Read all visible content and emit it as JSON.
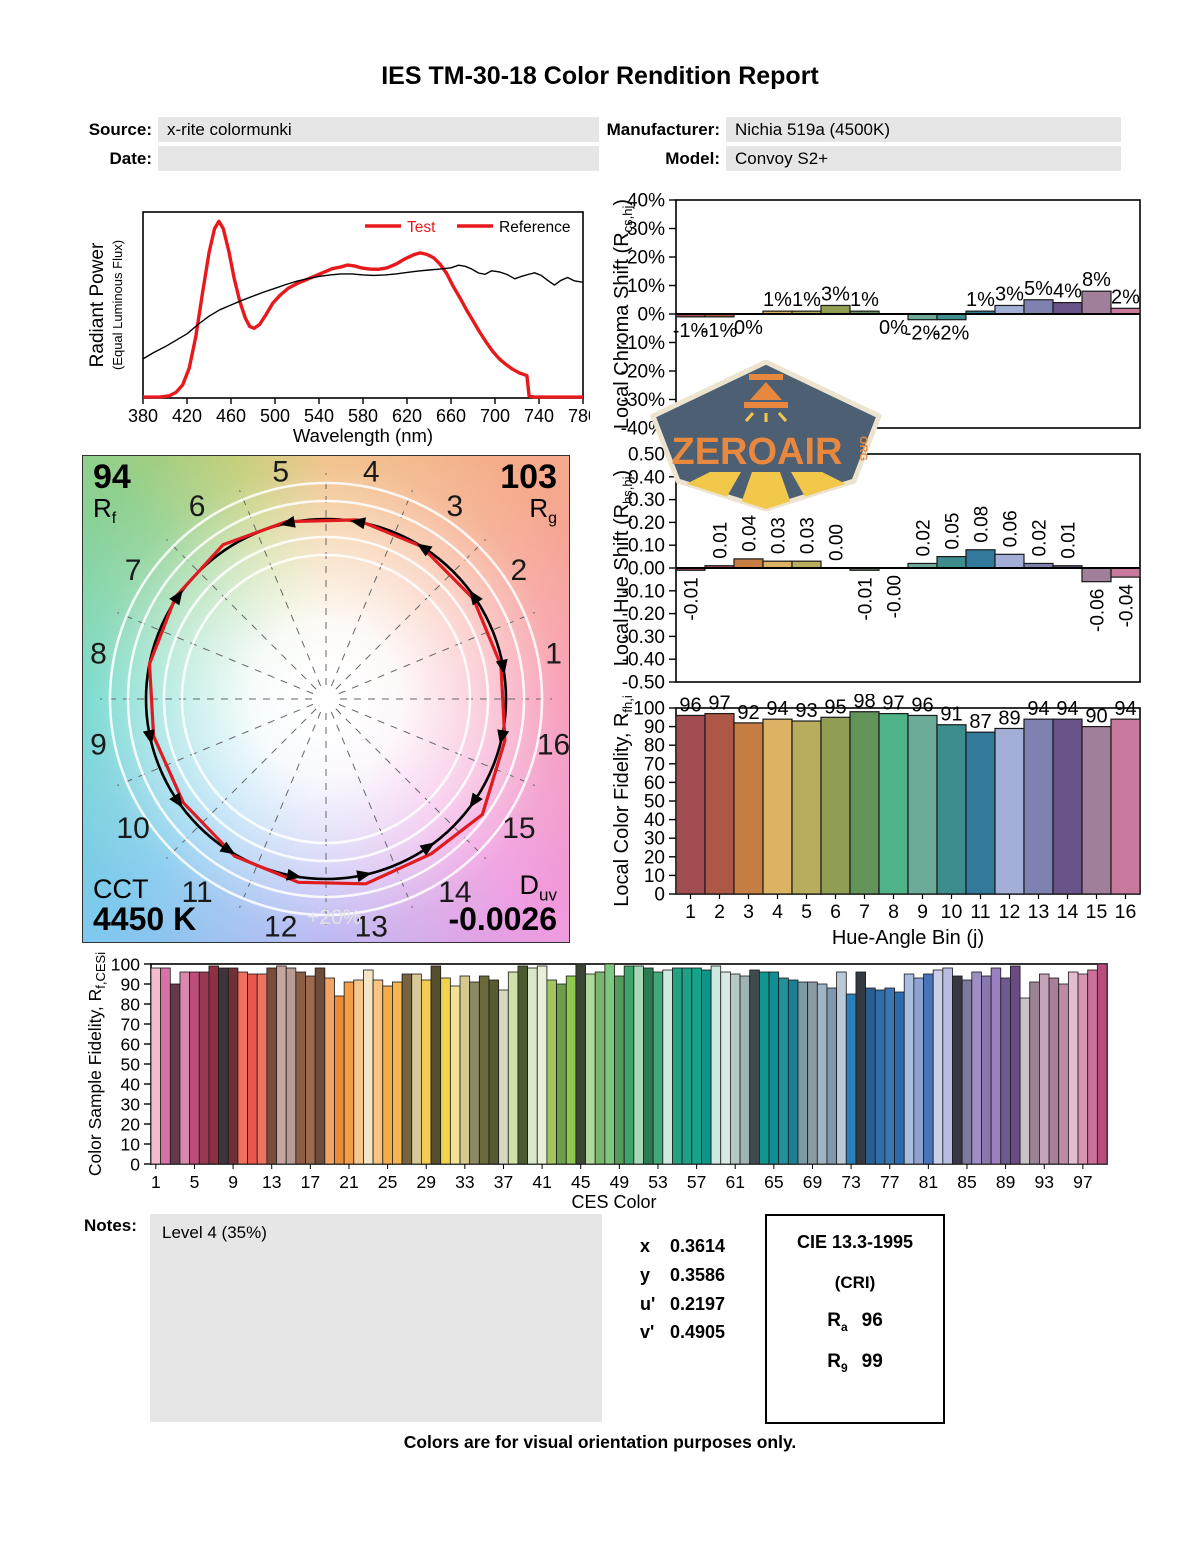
{
  "title": "IES TM-30-18 Color Rendition Report",
  "meta": {
    "source_label": "Source:",
    "source_value": "x-rite colormunki",
    "date_label": "Date:",
    "date_value": "",
    "manufacturer_label": "Manufacturer:",
    "manufacturer_value": "Nichia 519a (4500K)",
    "model_label": "Model:",
    "model_value": "Convoy S2+"
  },
  "logo": {
    "brand": "ZEROAIR",
    "tld": "ORG"
  },
  "cvg": {
    "rf_value": "94",
    "rf_label_main": "R",
    "rf_label_sub": "f",
    "rg_value": "103",
    "rg_label_main": "R",
    "rg_label_sub": "g",
    "cct_label": "CCT",
    "cct_value": "4450 K",
    "duv_label_main": "D",
    "duv_label_sub": "uv",
    "duv_value": "-0.0026",
    "ring_label": "+20%",
    "bin_labels": [
      "1",
      "2",
      "3",
      "4",
      "5",
      "6",
      "7",
      "8",
      "9",
      "10",
      "11",
      "12",
      "13",
      "14",
      "15",
      "16"
    ],
    "test_radius_factor": [
      0.99,
      0.99,
      1.0,
      1.01,
      1.01,
      1.03,
      1.01,
      1.0,
      0.98,
      0.98,
      1.01,
      1.03,
      1.05,
      1.04,
      1.08,
      1.02
    ],
    "hue_shift": [
      -0.01,
      0.01,
      0.04,
      0.03,
      0.03,
      0.0,
      -0.01,
      0.0,
      0.02,
      0.05,
      0.08,
      0.06,
      0.02,
      0.01,
      -0.06,
      -0.04
    ]
  },
  "bin_colors": [
    "#a14d52",
    "#ad5746",
    "#c67e42",
    "#dcb264",
    "#b7ad5c",
    "#8f9e52",
    "#62945a",
    "#4fb389",
    "#6cab99",
    "#3e8d8d",
    "#33799b",
    "#a3afd7",
    "#7f82b0",
    "#6a5388",
    "#a07f9a",
    "#c8799c"
  ],
  "notes": {
    "label": "Notes:",
    "value": "Level 4 (35%)"
  },
  "chromaticity": {
    "rows": [
      {
        "label": "x",
        "value": "0.3614"
      },
      {
        "label": "y",
        "value": "0.3586"
      },
      {
        "label": "u'",
        "value": "0.2197"
      },
      {
        "label": "v'",
        "value": "0.4905"
      }
    ]
  },
  "cri_box": {
    "title": "CIE 13.3-1995",
    "subtitle": "(CRI)",
    "rows": [
      {
        "label_main": "R",
        "label_sub": "a",
        "value": "96"
      },
      {
        "label_main": "R",
        "label_sub": "9",
        "value": "99"
      }
    ]
  },
  "footer": "Colors are for visual orientation purposes only.",
  "chart_data": [
    {
      "id": "spd",
      "type": "line",
      "xlabel": "Wavelength (nm)",
      "ylabel_line1": "Radiant Power",
      "ylabel_line2": "(Equal Luminous Flux)",
      "xlim": [
        380,
        780
      ],
      "ylim": [
        0,
        1
      ],
      "grid": false,
      "xticks": [
        380,
        420,
        460,
        500,
        540,
        580,
        620,
        660,
        700,
        740,
        780
      ],
      "legend": [
        {
          "label": "Test",
          "line_color": "#e8191c",
          "text_color": "#e8191c"
        },
        {
          "label": "Reference",
          "line_color": "#e8191c",
          "text_color": "#000000"
        }
      ],
      "series": [
        {
          "name": "Test",
          "color": "#e8191c",
          "width": 3.4,
          "points": [
            [
              380,
              0.005
            ],
            [
              396,
              0.006
            ],
            [
              404,
              0.012
            ],
            [
              410,
              0.03
            ],
            [
              416,
              0.07
            ],
            [
              422,
              0.16
            ],
            [
              428,
              0.33
            ],
            [
              434,
              0.56
            ],
            [
              440,
              0.78
            ],
            [
              445,
              0.91
            ],
            [
              449,
              0.95
            ],
            [
              453,
              0.91
            ],
            [
              458,
              0.79
            ],
            [
              463,
              0.64
            ],
            [
              468,
              0.52
            ],
            [
              473,
              0.43
            ],
            [
              477,
              0.385
            ],
            [
              481,
              0.375
            ],
            [
              486,
              0.395
            ],
            [
              492,
              0.45
            ],
            [
              498,
              0.51
            ],
            [
              505,
              0.555
            ],
            [
              512,
              0.59
            ],
            [
              520,
              0.615
            ],
            [
              528,
              0.635
            ],
            [
              536,
              0.655
            ],
            [
              544,
              0.675
            ],
            [
              552,
              0.695
            ],
            [
              560,
              0.705
            ],
            [
              566,
              0.715
            ],
            [
              572,
              0.71
            ],
            [
              578,
              0.7
            ],
            [
              586,
              0.693
            ],
            [
              594,
              0.692
            ],
            [
              602,
              0.7
            ],
            [
              610,
              0.72
            ],
            [
              618,
              0.748
            ],
            [
              626,
              0.77
            ],
            [
              632,
              0.78
            ],
            [
              638,
              0.772
            ],
            [
              644,
              0.755
            ],
            [
              650,
              0.72
            ],
            [
              656,
              0.67
            ],
            [
              662,
              0.6
            ],
            [
              668,
              0.54
            ],
            [
              674,
              0.475
            ],
            [
              680,
              0.415
            ],
            [
              686,
              0.355
            ],
            [
              692,
              0.3
            ],
            [
              698,
              0.25
            ],
            [
              704,
              0.21
            ],
            [
              710,
              0.18
            ],
            [
              716,
              0.155
            ],
            [
              722,
              0.135
            ],
            [
              727,
              0.125
            ],
            [
              729,
              0.12
            ],
            [
              731,
              0.01
            ],
            [
              736,
              0.005
            ],
            [
              780,
              0.005
            ]
          ]
        },
        {
          "name": "Reference",
          "color": "#000000",
          "width": 1.4,
          "points": [
            [
              380,
              0.21
            ],
            [
              390,
              0.245
            ],
            [
              400,
              0.275
            ],
            [
              410,
              0.31
            ],
            [
              420,
              0.345
            ],
            [
              430,
              0.395
            ],
            [
              440,
              0.44
            ],
            [
              450,
              0.475
            ],
            [
              460,
              0.5
            ],
            [
              470,
              0.525
            ],
            [
              480,
              0.548
            ],
            [
              490,
              0.57
            ],
            [
              500,
              0.59
            ],
            [
              510,
              0.61
            ],
            [
              520,
              0.628
            ],
            [
              530,
              0.642
            ],
            [
              540,
              0.654
            ],
            [
              550,
              0.662
            ],
            [
              560,
              0.667
            ],
            [
              570,
              0.667
            ],
            [
              580,
              0.662
            ],
            [
              590,
              0.659
            ],
            [
              600,
              0.662
            ],
            [
              610,
              0.667
            ],
            [
              620,
              0.675
            ],
            [
              630,
              0.682
            ],
            [
              640,
              0.688
            ],
            [
              650,
              0.693
            ],
            [
              660,
              0.7
            ],
            [
              667,
              0.714
            ],
            [
              673,
              0.708
            ],
            [
              679,
              0.693
            ],
            [
              685,
              0.672
            ],
            [
              691,
              0.665
            ],
            [
              697,
              0.684
            ],
            [
              704,
              0.678
            ],
            [
              711,
              0.664
            ],
            [
              718,
              0.641
            ],
            [
              724,
              0.654
            ],
            [
              730,
              0.664
            ],
            [
              736,
              0.673
            ],
            [
              742,
              0.659
            ],
            [
              748,
              0.632
            ],
            [
              754,
              0.607
            ],
            [
              760,
              0.633
            ],
            [
              766,
              0.648
            ],
            [
              772,
              0.63
            ],
            [
              778,
              0.624
            ],
            [
              780,
              0.623
            ]
          ]
        }
      ]
    },
    {
      "id": "chroma",
      "type": "bar",
      "ylabel_main": "Local Chroma Shift (R",
      "ylabel_sub": "cs,hj",
      "ylabel_close": ")",
      "ylim": [
        -40,
        40
      ],
      "ytick_vals": [
        40,
        30,
        20,
        10,
        0,
        -10,
        -20,
        -30,
        -40
      ],
      "ytick_labels": [
        "40%",
        "30%",
        "20%",
        "10%",
        "0%",
        "-10%",
        "-20%",
        "-30%",
        "-40%"
      ],
      "categories": [
        1,
        2,
        3,
        4,
        5,
        6,
        7,
        8,
        9,
        10,
        11,
        12,
        13,
        14,
        15,
        16
      ],
      "values": [
        -1,
        -1,
        0,
        1,
        1,
        3,
        1,
        0,
        -2,
        -2,
        1,
        3,
        5,
        4,
        8,
        2
      ],
      "labels": [
        "-1%",
        "-1%",
        "0%",
        "1%",
        "1%",
        "3%",
        "1%",
        "0%",
        "-2%",
        "-2%",
        "1%",
        "3%",
        "5%",
        "4%",
        "8%",
        "2%"
      ],
      "label_sides": [
        "b",
        "b",
        "b",
        "a",
        "a",
        "a",
        "a",
        "b",
        "b",
        "b",
        "a",
        "a",
        "a",
        "a",
        "a",
        "a"
      ]
    },
    {
      "id": "hue",
      "type": "bar",
      "ylabel_main": "Local Hue Shift (R",
      "ylabel_sub": "hs,hj",
      "ylabel_close": ")",
      "ylim": [
        -0.5,
        0.5
      ],
      "ytick_vals": [
        0.5,
        0.4,
        0.3,
        0.2,
        0.1,
        0,
        -0.1,
        -0.2,
        -0.3,
        -0.4,
        -0.5
      ],
      "ytick_labels": [
        "0.50",
        "0.40",
        "0.30",
        "0.20",
        "0.10",
        "0.00",
        "-0.10",
        "-0.20",
        "-0.30",
        "-0.40",
        "-0.50"
      ],
      "categories": [
        1,
        2,
        3,
        4,
        5,
        6,
        7,
        8,
        9,
        10,
        11,
        12,
        13,
        14,
        15,
        16
      ],
      "values": [
        -0.01,
        0.01,
        0.04,
        0.03,
        0.03,
        0,
        -0.01,
        0,
        0.02,
        0.05,
        0.08,
        0.06,
        0.02,
        0.01,
        -0.06,
        -0.04
      ],
      "labels": [
        "-0.01",
        "0.01",
        "0.04",
        "0.03",
        "0.03",
        "0.00",
        "-0.01",
        "-0.00",
        "0.02",
        "0.05",
        "0.08",
        "0.06",
        "0.02",
        "0.01",
        "-0.06",
        "-0.04"
      ],
      "label_sides": [
        "b",
        "a",
        "a",
        "a",
        "a",
        "a",
        "b",
        "b",
        "a",
        "a",
        "a",
        "a",
        "a",
        "a",
        "b",
        "b"
      ]
    },
    {
      "id": "fidelity",
      "type": "bar",
      "ylabel_main": "Local Color Fidelity, R",
      "ylabel_sub": "fh,i",
      "ylabel_close": "",
      "xlabel": "Hue-Angle Bin (j)",
      "ylim": [
        0,
        100
      ],
      "ytick_vals": [
        100,
        90,
        80,
        70,
        60,
        50,
        40,
        30,
        20,
        10,
        0
      ],
      "ytick_labels": [
        "100",
        "90",
        "80",
        "70",
        "60",
        "50",
        "40",
        "30",
        "20",
        "10",
        "0"
      ],
      "categories": [
        "1",
        "2",
        "3",
        "4",
        "5",
        "6",
        "7",
        "8",
        "9",
        "10",
        "11",
        "12",
        "13",
        "14",
        "15",
        "16"
      ],
      "values": [
        96,
        97,
        92,
        94,
        93,
        95,
        98,
        97,
        96,
        91,
        87,
        89,
        94,
        94,
        90,
        94
      ],
      "labels": [
        "96",
        "97",
        "92",
        "94",
        "93",
        "95",
        "98",
        "97",
        "96",
        "91",
        "87",
        "89",
        "94",
        "94",
        "90",
        "94"
      ]
    },
    {
      "id": "ces",
      "type": "bar",
      "ylabel_main": "Color Sample Fidelity, R",
      "ylabel_sub": "f,CESi",
      "ylabel_close": "",
      "xlabel": "CES Color",
      "ylim": [
        0,
        100
      ],
      "ytick_vals": [
        100,
        90,
        80,
        70,
        60,
        50,
        40,
        30,
        20,
        10,
        0
      ],
      "ytick_labels": [
        "100",
        "90",
        "80",
        "70",
        "60",
        "50",
        "40",
        "30",
        "20",
        "10",
        "0"
      ],
      "xtick_labels": [
        "1",
        "5",
        "9",
        "13",
        "17",
        "21",
        "25",
        "29",
        "33",
        "37",
        "41",
        "45",
        "49",
        "53",
        "57",
        "61",
        "65",
        "69",
        "73",
        "77",
        "81",
        "85",
        "89",
        "93",
        "97"
      ],
      "values": [
        98,
        98,
        90,
        96,
        96,
        96,
        99,
        98,
        98,
        96,
        95,
        95,
        98,
        99,
        98,
        96,
        94,
        98,
        93,
        84,
        91,
        92,
        97,
        92,
        89,
        91,
        95,
        95,
        92,
        99,
        93,
        89,
        94,
        91,
        94,
        92,
        87,
        96,
        99,
        98,
        99,
        92,
        90,
        94,
        100,
        95,
        96,
        100,
        94,
        99,
        99,
        98,
        96,
        97,
        98,
        98,
        98,
        97,
        99,
        96,
        95,
        94,
        97,
        96,
        96,
        93,
        92,
        91,
        91,
        90,
        88,
        96,
        85,
        96,
        88,
        87,
        88,
        86,
        95,
        93,
        95,
        97,
        98,
        94,
        92,
        96,
        94,
        98,
        93,
        99,
        83,
        91,
        95,
        93,
        90,
        96,
        95,
        97,
        100
      ],
      "colors": [
        "#f4bcd1",
        "#d874a5",
        "#64394a",
        "#d987ab",
        "#bb4d79",
        "#973952",
        "#8e2f44",
        "#3d343c",
        "#6f3038",
        "#ef6f60",
        "#e9564c",
        "#f07261",
        "#7d4b3a",
        "#c6a49f",
        "#b89b94",
        "#8d5c45",
        "#9b6a4f",
        "#6d4c39",
        "#f2a366",
        "#ea8c38",
        "#f29d47",
        "#f7c68d",
        "#f3e5c5",
        "#f8c480",
        "#f5ab49",
        "#f5b551",
        "#776341",
        "#d8c897",
        "#f4cc55",
        "#564f2d",
        "#f0d24f",
        "#f3e294",
        "#d5c98f",
        "#8d8a63",
        "#6c6a3b",
        "#585a31",
        "#d6d8c2",
        "#cfe0a8",
        "#4c5c31",
        "#d8e8c9",
        "#e7efd8",
        "#a4c45f",
        "#6e9e4c",
        "#8fc84e",
        "#3c4435",
        "#b0d89a",
        "#79b56b",
        "#7dc87e",
        "#569b5c",
        "#3da46b",
        "#a8d8b8",
        "#2c7a52",
        "#43a878",
        "#cfeadf",
        "#23a183",
        "#1ea087",
        "#15a38b",
        "#0f9488",
        "#cde9e1",
        "#d9e8e4",
        "#b6c8c4",
        "#9fb3b1",
        "#3e4a4e",
        "#11958f",
        "#0f8e93",
        "#23909b",
        "#1b7f93",
        "#7c9aa5",
        "#8b9aa3",
        "#9fb4c4",
        "#7f98ad",
        "#b9c9d8",
        "#2980b9",
        "#33393f",
        "#2a5e8f",
        "#2f6ea8",
        "#3a76b4",
        "#2a6aad",
        "#a9bede",
        "#8fa3d0",
        "#4a74b8",
        "#c9cfe8",
        "#b9bce0",
        "#3a3744",
        "#7d7a9e",
        "#9d8fc4",
        "#8a77ae",
        "#9b7fc0",
        "#6d5a8e",
        "#6b4a85",
        "#c8c4c6",
        "#9d8494",
        "#c5a3b8",
        "#a77f98",
        "#c089a8",
        "#e3bcd0",
        "#d795b4",
        "#cc6f9b",
        "#b94d7e"
      ]
    }
  ]
}
